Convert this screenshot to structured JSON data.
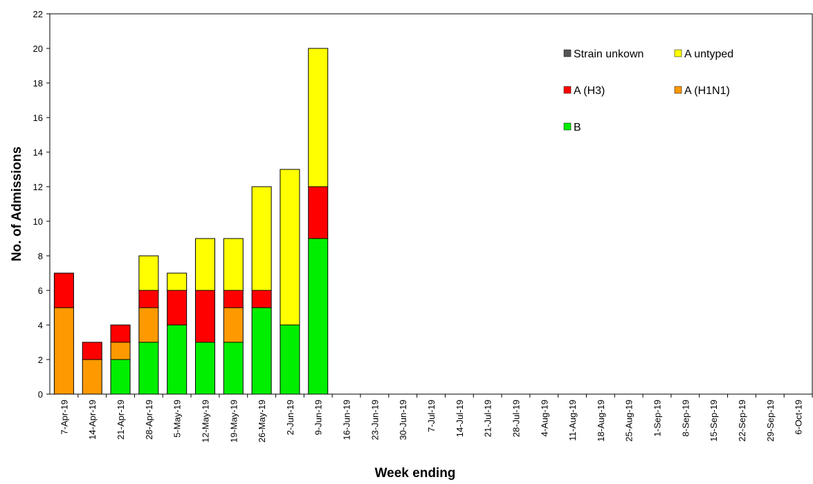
{
  "chart_data": {
    "type": "stacked_bar",
    "x_label": "Week ending",
    "y_label": "No. of Admissions",
    "categories": [
      "7-Apr-19",
      "14-Apr-19",
      "21-Apr-19",
      "28-Apr-19",
      "5-May-19",
      "12-May-19",
      "19-May-19",
      "26-May-19",
      "2-Jun-19",
      "9-Jun-19",
      "16-Jun-19",
      "23-Jun-19",
      "30-Jun-19",
      "7-Jul-19",
      "14-Jul-19",
      "21-Jul-19",
      "28-Jul-19",
      "4-Aug-19",
      "11-Aug-19",
      "18-Aug-19",
      "25-Aug-19",
      "1-Sep-19",
      "8-Sep-19",
      "15-Sep-19",
      "22-Sep-19",
      "29-Sep-19",
      "6-Oct-19"
    ],
    "series": [
      {
        "name": "B",
        "color": "#00ee00",
        "values": [
          0,
          0,
          2,
          3,
          4,
          3,
          3,
          5,
          4,
          9,
          null,
          null,
          null,
          null,
          null,
          null,
          null,
          null,
          null,
          null,
          null,
          null,
          null,
          null,
          null,
          null,
          null
        ]
      },
      {
        "name": "A (H1N1)",
        "color": "#ff9900",
        "values": [
          5,
          2,
          1,
          2,
          0,
          0,
          2,
          0,
          0,
          0,
          null,
          null,
          null,
          null,
          null,
          null,
          null,
          null,
          null,
          null,
          null,
          null,
          null,
          null,
          null,
          null,
          null
        ]
      },
      {
        "name": "A (H3)",
        "color": "#ff0000",
        "values": [
          2,
          1,
          1,
          1,
          2,
          3,
          1,
          1,
          0,
          3,
          null,
          null,
          null,
          null,
          null,
          null,
          null,
          null,
          null,
          null,
          null,
          null,
          null,
          null,
          null,
          null,
          null
        ]
      },
      {
        "name": "A untyped",
        "color": "#ffff00",
        "values": [
          0,
          0,
          0,
          2,
          1,
          3,
          3,
          6,
          9,
          8,
          null,
          null,
          null,
          null,
          null,
          null,
          null,
          null,
          null,
          null,
          null,
          null,
          null,
          null,
          null,
          null,
          null
        ]
      },
      {
        "name": "Strain unkown",
        "color": "#555555",
        "values": [
          0,
          0,
          0,
          0,
          0,
          0,
          0,
          0,
          0,
          0,
          null,
          null,
          null,
          null,
          null,
          null,
          null,
          null,
          null,
          null,
          null,
          null,
          null,
          null,
          null,
          null,
          null
        ]
      }
    ],
    "ylim": [
      0,
      22
    ],
    "yticks": [
      0,
      2,
      4,
      6,
      8,
      10,
      12,
      14,
      16,
      18,
      20,
      22
    ]
  }
}
